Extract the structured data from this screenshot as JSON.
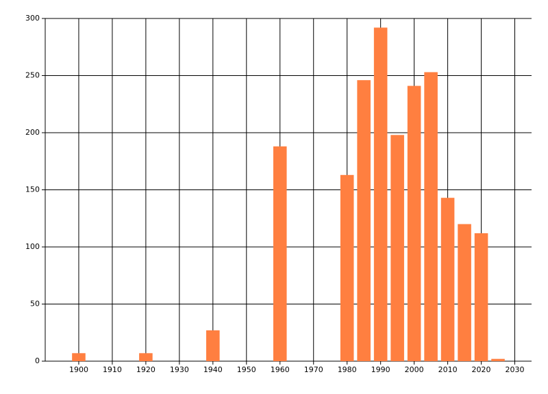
{
  "chart_data": {
    "type": "bar",
    "x": [
      1900,
      1920,
      1940,
      1960,
      1980,
      1985,
      1990,
      1995,
      2000,
      2005,
      2010,
      2015,
      2020,
      2025
    ],
    "values": [
      7,
      7,
      27,
      188,
      163,
      246,
      292,
      198,
      241,
      253,
      143,
      120,
      112,
      2
    ],
    "color": "#ff7f40",
    "xlim": [
      1890,
      2035
    ],
    "xticks": [
      1900,
      1910,
      1920,
      1930,
      1940,
      1950,
      1960,
      1970,
      1980,
      1990,
      2000,
      2010,
      2020,
      2030
    ],
    "ylim": [
      0,
      300
    ],
    "yticks": [
      0,
      50,
      100,
      150,
      200,
      250,
      300
    ],
    "grid": true
  }
}
